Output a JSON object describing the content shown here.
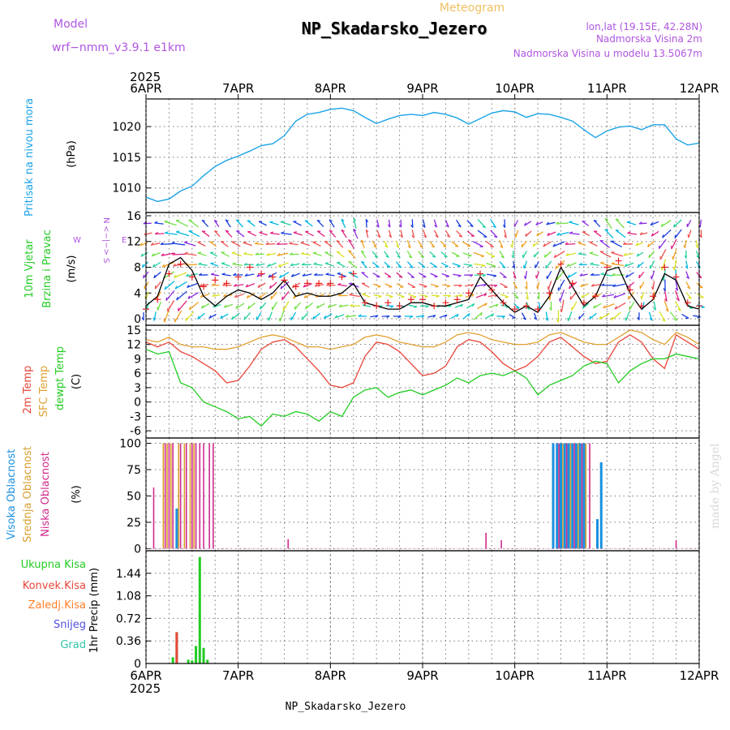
{
  "header": {
    "model_label": "Model",
    "model_name": "wrf−nmm_v3.9.1  e1km",
    "title": "Meteogram",
    "station": "NP_Skadarsko_Jezero",
    "lonlat": "lon,lat (19.15E, 42.28N)",
    "elevation": "Nadmorska Visina 2m",
    "model_elevation": "Nadmorska Visina u modelu 13.5067m",
    "year": "2025",
    "footer_station": "NP_Skadarsko_Jezero",
    "credit": "made by Angel"
  },
  "colors": {
    "pressure": "#1aa3e8",
    "temp2m": "#e8463a",
    "sfc": "#e0a030",
    "dewpt": "#22cc22",
    "high_cloud": "#1a90e0",
    "mid_cloud": "#d8a030",
    "low_cloud": "#d02a8c",
    "total_precip": "#22cc22",
    "conv_precip": "#e8463a",
    "frz_precip": "#ff7f27",
    "snow": "#5050e0",
    "hail": "#2ec4a8",
    "grid": "#777777",
    "model_purple": "#b055e0",
    "title_orange": "#f0c060"
  },
  "chart_data": {
    "x_axis": {
      "days": [
        "6APR",
        "7APR",
        "8APR",
        "9APR",
        "10APR",
        "11APR",
        "12APR"
      ],
      "year": "2025"
    },
    "panels": [
      {
        "id": "pressure",
        "type": "line",
        "ylabel": "Pritisak na nivou mora",
        "unit": "(hPa)",
        "yticks": [
          1010,
          1015,
          1020
        ],
        "ylim": [
          1006,
          1024.5
        ],
        "x_hours": [
          0,
          3,
          6,
          9,
          12,
          15,
          18,
          21,
          24,
          27,
          30,
          33,
          36,
          39,
          42,
          45,
          48,
          51,
          54,
          57,
          60,
          63,
          66,
          69,
          72,
          75,
          78,
          81,
          84,
          87,
          90,
          93,
          96,
          99,
          102,
          105,
          108,
          111,
          114,
          117,
          120,
          123,
          126,
          129,
          132,
          135,
          138,
          141,
          144
        ],
        "values": [
          1008.5,
          1007.8,
          1008.2,
          1009.5,
          1010.3,
          1012.0,
          1013.5,
          1014.5,
          1015.2,
          1016.0,
          1016.9,
          1017.2,
          1018.5,
          1020.9,
          1022.0,
          1022.3,
          1022.8,
          1023.0,
          1022.6,
          1021.5,
          1020.5,
          1021.2,
          1021.8,
          1022.0,
          1021.8,
          1022.3,
          1022.0,
          1021.4,
          1020.4,
          1021.3,
          1022.2,
          1022.6,
          1022.4,
          1021.5,
          1022.1,
          1022.0,
          1021.5,
          1020.9,
          1019.5,
          1018.2,
          1019.3,
          1019.9,
          1020.1,
          1019.5,
          1020.3,
          1020.3,
          1018.0,
          1017.0,
          1017.3
        ]
      },
      {
        "id": "wind",
        "type": "line",
        "ylabel": "10m Vjetar Brzina i Pravac",
        "unit": "(m/s)",
        "compass": {
          "n": "N",
          "w": "W",
          "e": "E",
          "s": "S",
          "arrows": "<−|−>"
        },
        "yticks": [
          0,
          4,
          8,
          12,
          16
        ],
        "ylim": [
          -1,
          16.5
        ],
        "x_hours": [
          0,
          3,
          6,
          9,
          12,
          15,
          18,
          21,
          24,
          27,
          30,
          33,
          36,
          39,
          42,
          45,
          48,
          51,
          54,
          57,
          60,
          63,
          66,
          69,
          72,
          75,
          78,
          81,
          84,
          87,
          90,
          93,
          96,
          99,
          102,
          105,
          108,
          111,
          114,
          117,
          120,
          123,
          126,
          129,
          132,
          135,
          138,
          141,
          144
        ],
        "speed": [
          2.0,
          3.5,
          8.5,
          9.5,
          7.5,
          3.5,
          2.0,
          3.5,
          4.5,
          4.0,
          3.0,
          4.0,
          6.0,
          3.5,
          4.0,
          3.5,
          3.5,
          4.0,
          5.5,
          2.5,
          2.0,
          1.5,
          1.5,
          2.5,
          2.5,
          2.0,
          2.0,
          2.5,
          3.0,
          6.5,
          4.5,
          2.5,
          1.0,
          2.0,
          1.0,
          3.5,
          8.0,
          5.0,
          2.0,
          3.5,
          7.5,
          8.0,
          4.0,
          1.5,
          3.0,
          7.0,
          6.0,
          2.0,
          1.5
        ],
        "gust": [
          1.5,
          3.0,
          7.0,
          8.5,
          6.5,
          5.0,
          6.0,
          5.5,
          6.5,
          8.0,
          7.0,
          6.5,
          6.0,
          5.0,
          5.5,
          5.5,
          5.5,
          6.5,
          7.0,
          2.5,
          2.0,
          2.5,
          2.0,
          3.0,
          3.0,
          2.0,
          2.5,
          3.0,
          4.0,
          7.0,
          4.5,
          2.5,
          1.5,
          2.0,
          1.5,
          4.0,
          8.5,
          5.5,
          2.5,
          3.5,
          8.0,
          9.0,
          4.5,
          2.0,
          3.5,
          8.0,
          6.5,
          2.5,
          2.0
        ],
        "direction_deg": [
          180,
          190,
          200,
          210,
          220,
          230,
          240,
          240,
          230,
          220,
          210,
          200,
          200,
          210,
          220,
          230,
          240,
          250,
          260,
          270,
          80,
          85,
          90,
          90,
          80,
          75,
          70,
          60,
          50,
          50,
          60,
          90,
          120,
          150,
          160,
          170,
          180,
          200,
          220,
          230,
          240,
          230,
          200,
          180,
          160,
          150,
          140,
          120,
          100
        ]
      },
      {
        "id": "temperature",
        "type": "line",
        "ylabels": [
          "2m Temp",
          "SFC Temp",
          "dewpt Temp"
        ],
        "unit": "(C)",
        "yticks": [
          -6,
          -3,
          0,
          3,
          6,
          9,
          12,
          15
        ],
        "ylim": [
          -7.5,
          16
        ],
        "x_hours": [
          0,
          3,
          6,
          9,
          12,
          15,
          18,
          21,
          24,
          27,
          30,
          33,
          36,
          39,
          42,
          45,
          48,
          51,
          54,
          57,
          60,
          63,
          66,
          69,
          72,
          75,
          78,
          81,
          84,
          87,
          90,
          93,
          96,
          99,
          102,
          105,
          108,
          111,
          114,
          117,
          120,
          123,
          126,
          129,
          132,
          135,
          138,
          141,
          144
        ],
        "series": [
          {
            "name": "2m Temp",
            "values": [
              12.5,
              11.5,
              12.5,
              10.5,
              9.5,
              8.0,
              6.5,
              4.0,
              4.5,
              7.5,
              11.0,
              12.5,
              13.0,
              11.5,
              9.0,
              6.5,
              3.5,
              3.0,
              4.0,
              9.5,
              12.5,
              12.0,
              10.5,
              8.0,
              5.5,
              6.0,
              7.5,
              11.5,
              13.0,
              12.5,
              10.5,
              8.0,
              6.5,
              7.5,
              9.5,
              12.5,
              13.5,
              11.5,
              9.5,
              8.0,
              8.5,
              12.5,
              14.0,
              12.5,
              9.0,
              7.0,
              14.0,
              12.5,
              11.0
            ]
          },
          {
            "name": "SFC Temp",
            "values": [
              13.0,
              12.5,
              13.5,
              12.0,
              11.5,
              11.5,
              11.0,
              11.0,
              11.5,
              12.5,
              13.5,
              14.0,
              13.5,
              12.5,
              11.5,
              11.5,
              11.0,
              11.5,
              12.0,
              13.5,
              14.0,
              13.5,
              12.5,
              12.0,
              11.5,
              11.5,
              12.5,
              14.0,
              14.5,
              14.0,
              13.0,
              12.5,
              12.0,
              12.0,
              12.5,
              14.0,
              14.5,
              13.5,
              12.5,
              12.0,
              12.0,
              13.5,
              15.0,
              14.5,
              13.0,
              12.0,
              14.5,
              13.5,
              12.0
            ]
          },
          {
            "name": "dewpt Temp",
            "values": [
              11.0,
              10.0,
              10.5,
              4.0,
              3.0,
              0.0,
              -1.0,
              -2.0,
              -3.5,
              -3.0,
              -5.0,
              -2.5,
              -3.0,
              -2.0,
              -2.5,
              -4.0,
              -2.0,
              -3.0,
              1.0,
              2.5,
              3.0,
              1.0,
              2.0,
              2.5,
              1.5,
              2.5,
              3.5,
              5.0,
              4.0,
              5.5,
              6.0,
              5.5,
              6.5,
              5.0,
              1.5,
              3.5,
              4.5,
              5.5,
              7.5,
              8.5,
              8.0,
              4.0,
              6.5,
              8.0,
              9.0,
              9.0,
              10.0,
              9.5,
              9.0
            ]
          }
        ]
      },
      {
        "id": "clouds",
        "type": "bar",
        "ylabels": [
          "Visoka Oblacnost",
          "Srednja Oblacnost",
          "Niska Oblacnost"
        ],
        "unit": "(%)",
        "yticks": [
          0,
          25,
          50,
          75,
          100
        ],
        "ylim": [
          -2,
          105
        ],
        "bars": [
          {
            "layer": "low",
            "hour": 2.0,
            "value": 58
          },
          {
            "layer": "mid",
            "hour": 4.5,
            "value": 100
          },
          {
            "layer": "low",
            "hour": 5.0,
            "value": 100
          },
          {
            "layer": "mid",
            "hour": 5.5,
            "value": 100
          },
          {
            "layer": "low",
            "hour": 6.0,
            "value": 100
          },
          {
            "layer": "mid",
            "hour": 6.5,
            "value": 100
          },
          {
            "layer": "low",
            "hour": 7.0,
            "value": 100
          },
          {
            "layer": "high",
            "hour": 8.0,
            "value": 38
          },
          {
            "layer": "mid",
            "hour": 8.5,
            "value": 100
          },
          {
            "layer": "low",
            "hour": 9.0,
            "value": 100
          },
          {
            "layer": "mid",
            "hour": 10.0,
            "value": 100
          },
          {
            "layer": "low",
            "hour": 10.5,
            "value": 100
          },
          {
            "layer": "mid",
            "hour": 11.5,
            "value": 100
          },
          {
            "layer": "low",
            "hour": 12.0,
            "value": 100
          },
          {
            "layer": "mid",
            "hour": 12.5,
            "value": 100
          },
          {
            "layer": "low",
            "hour": 13.0,
            "value": 100
          },
          {
            "layer": "low",
            "hour": 14.0,
            "value": 100
          },
          {
            "layer": "low",
            "hour": 15.0,
            "value": 100
          },
          {
            "layer": "low",
            "hour": 16.5,
            "value": 100
          },
          {
            "layer": "low",
            "hour": 17.5,
            "value": 100
          },
          {
            "layer": "low",
            "hour": 37.0,
            "value": 9
          },
          {
            "layer": "low",
            "hour": 88.5,
            "value": 15
          },
          {
            "layer": "low",
            "hour": 92.5,
            "value": 8
          },
          {
            "layer": "high",
            "hour": 106.0,
            "value": 100
          },
          {
            "layer": "high",
            "hour": 107.0,
            "value": 100
          },
          {
            "layer": "low",
            "hour": 107.5,
            "value": 100
          },
          {
            "layer": "high",
            "hour": 108.0,
            "value": 100
          },
          {
            "layer": "mid",
            "hour": 108.5,
            "value": 100
          },
          {
            "layer": "high",
            "hour": 109.0,
            "value": 100
          },
          {
            "layer": "low",
            "hour": 109.5,
            "value": 100
          },
          {
            "layer": "high",
            "hour": 110.0,
            "value": 100
          },
          {
            "layer": "mid",
            "hour": 110.5,
            "value": 100
          },
          {
            "layer": "high",
            "hour": 111.0,
            "value": 100
          },
          {
            "layer": "low",
            "hour": 111.5,
            "value": 100
          },
          {
            "layer": "high",
            "hour": 112.0,
            "value": 100
          },
          {
            "layer": "mid",
            "hour": 112.5,
            "value": 100
          },
          {
            "layer": "high",
            "hour": 113.0,
            "value": 100
          },
          {
            "layer": "low",
            "hour": 113.5,
            "value": 100
          },
          {
            "layer": "high",
            "hour": 114.0,
            "value": 100
          },
          {
            "layer": "mid",
            "hour": 114.5,
            "value": 100
          },
          {
            "layer": "low",
            "hour": 115.5,
            "value": 100
          },
          {
            "layer": "high",
            "hour": 117.5,
            "value": 28
          },
          {
            "layer": "high",
            "hour": 118.5,
            "value": 82
          },
          {
            "layer": "low",
            "hour": 138.0,
            "value": 8
          }
        ]
      },
      {
        "id": "precip",
        "type": "bar",
        "legend": [
          "Ukupna Kisa",
          "Konvek.Kisa",
          "Zaledj.Kisa",
          "Snijeg",
          "Grad"
        ],
        "ylabel": "1hr Precip (mm)",
        "yticks": [
          "0",
          "0.36",
          "0.72",
          "1.08",
          "1.44"
        ],
        "ylim": [
          0,
          1.8
        ],
        "bars": [
          {
            "hour": 7.0,
            "total": 0.1,
            "conv": 0.0
          },
          {
            "hour": 8.0,
            "total": 0.5,
            "conv": 0.5
          },
          {
            "hour": 11.0,
            "total": 0.06,
            "conv": 0.0
          },
          {
            "hour": 12.0,
            "total": 0.05,
            "conv": 0.0
          },
          {
            "hour": 13.0,
            "total": 0.28,
            "conv": 0.0
          },
          {
            "hour": 14.0,
            "total": 1.7,
            "conv": 0.0
          },
          {
            "hour": 15.0,
            "total": 0.25,
            "conv": 0.0
          },
          {
            "hour": 16.0,
            "total": 0.06,
            "conv": 0.0
          }
        ]
      }
    ]
  }
}
